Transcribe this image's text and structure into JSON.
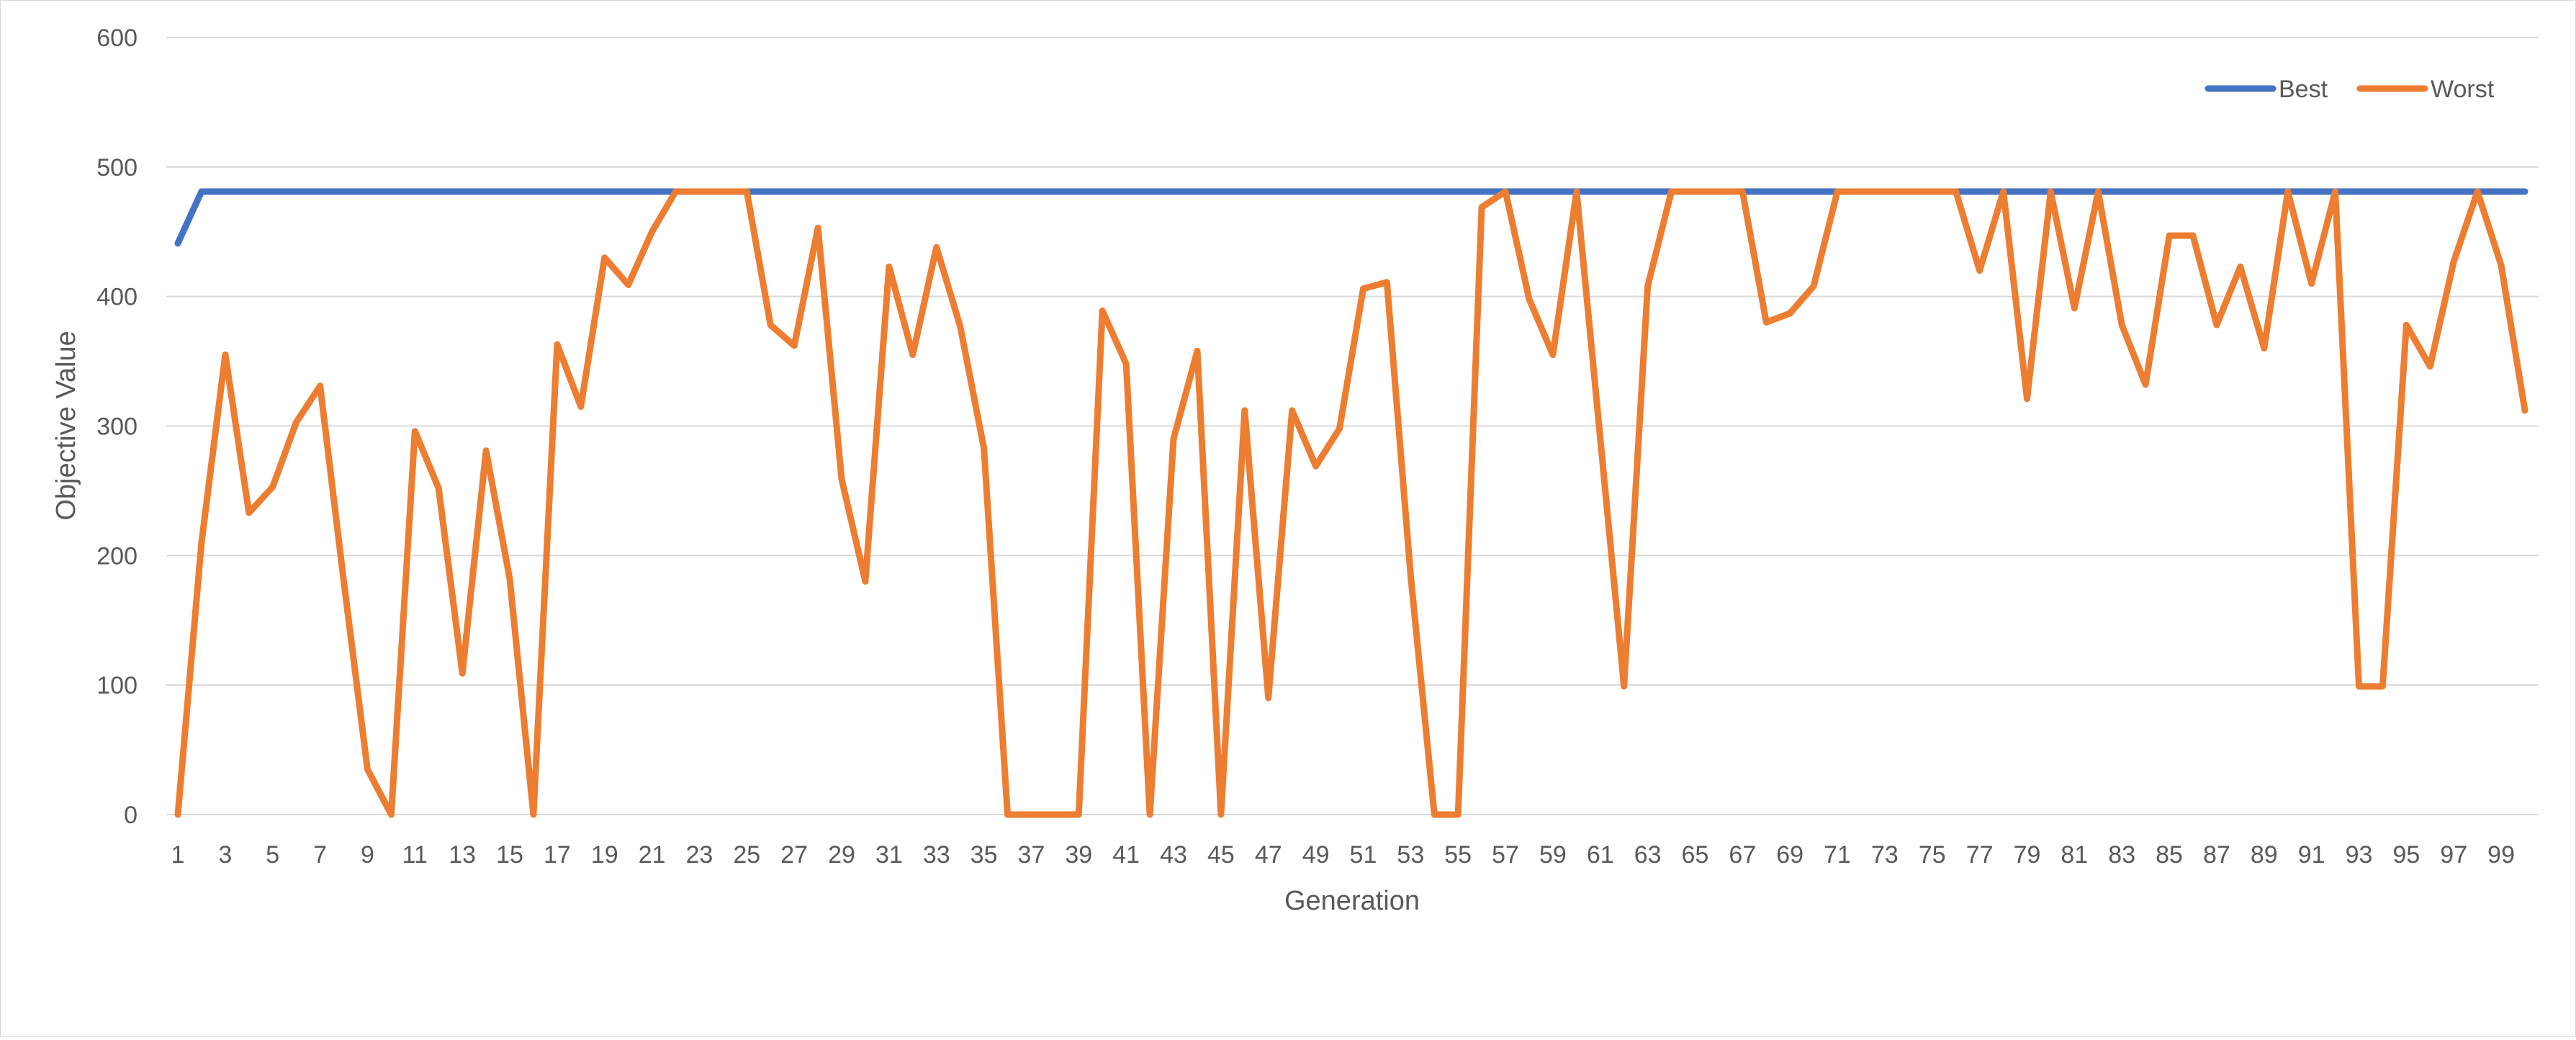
{
  "chart_data": {
    "type": "line",
    "title": "",
    "xlabel": "Generation",
    "ylabel": "Objective Value",
    "ylim": [
      0,
      600
    ],
    "yticks": [
      0,
      100,
      200,
      300,
      400,
      500,
      600
    ],
    "xlim": [
      1,
      100
    ],
    "xtick_labels": [
      1,
      3,
      5,
      7,
      9,
      11,
      13,
      15,
      17,
      19,
      21,
      23,
      25,
      27,
      29,
      31,
      33,
      35,
      37,
      39,
      41,
      43,
      45,
      47,
      49,
      51,
      53,
      55,
      57,
      59,
      61,
      63,
      65,
      67,
      69,
      71,
      73,
      75,
      77,
      79,
      81,
      83,
      85,
      87,
      89,
      91,
      93,
      95,
      97,
      99
    ],
    "grid": "horizontal",
    "legend_position": "top-right",
    "x": [
      1,
      2,
      3,
      4,
      5,
      6,
      7,
      8,
      9,
      10,
      11,
      12,
      13,
      14,
      15,
      16,
      17,
      18,
      19,
      20,
      21,
      22,
      23,
      24,
      25,
      26,
      27,
      28,
      29,
      30,
      31,
      32,
      33,
      34,
      35,
      36,
      37,
      38,
      39,
      40,
      41,
      42,
      43,
      44,
      45,
      46,
      47,
      48,
      49,
      50,
      51,
      52,
      53,
      54,
      55,
      56,
      57,
      58,
      59,
      60,
      61,
      62,
      63,
      64,
      65,
      66,
      67,
      68,
      69,
      70,
      71,
      72,
      73,
      74,
      75,
      76,
      77,
      78,
      79,
      80,
      81,
      82,
      83,
      84,
      85,
      86,
      87,
      88,
      89,
      90,
      91,
      92,
      93,
      94,
      95,
      96,
      97,
      98,
      99,
      100
    ],
    "series": [
      {
        "name": "Best",
        "color": "#4472C4",
        "values": [
          441,
          481,
          481,
          481,
          481,
          481,
          481,
          481,
          481,
          481,
          481,
          481,
          481,
          481,
          481,
          481,
          481,
          481,
          481,
          481,
          481,
          481,
          481,
          481,
          481,
          481,
          481,
          481,
          481,
          481,
          481,
          481,
          481,
          481,
          481,
          481,
          481,
          481,
          481,
          481,
          481,
          481,
          481,
          481,
          481,
          481,
          481,
          481,
          481,
          481,
          481,
          481,
          481,
          481,
          481,
          481,
          481,
          481,
          481,
          481,
          481,
          481,
          481,
          481,
          481,
          481,
          481,
          481,
          481,
          481,
          481,
          481,
          481,
          481,
          481,
          481,
          481,
          481,
          481,
          481,
          481,
          481,
          481,
          481,
          481,
          481,
          481,
          481,
          481,
          481,
          481,
          481,
          481,
          481,
          481,
          481,
          481,
          481,
          481,
          481
        ]
      },
      {
        "name": "Worst",
        "color": "#ED7D31",
        "values": [
          0,
          210,
          355,
          233,
          253,
          303,
          331,
          180,
          35,
          0,
          296,
          252,
          109,
          281,
          182,
          0,
          363,
          315,
          430,
          409,
          450,
          481,
          481,
          481,
          481,
          378,
          362,
          453,
          259,
          180,
          423,
          355,
          438,
          377,
          283,
          0,
          0,
          0,
          0,
          389,
          348,
          0,
          290,
          358,
          0,
          312,
          90,
          312,
          269,
          298,
          406,
          411,
          185,
          0,
          0,
          469,
          481,
          398,
          355,
          481,
          290,
          99,
          408,
          481,
          481,
          481,
          481,
          380,
          387,
          408,
          481,
          481,
          481,
          481,
          481,
          481,
          420,
          481,
          321,
          481,
          391,
          481,
          378,
          332,
          447,
          447,
          378,
          423,
          360,
          481,
          410,
          481,
          99,
          99,
          378,
          346,
          427,
          481,
          424,
          312
        ]
      }
    ]
  }
}
